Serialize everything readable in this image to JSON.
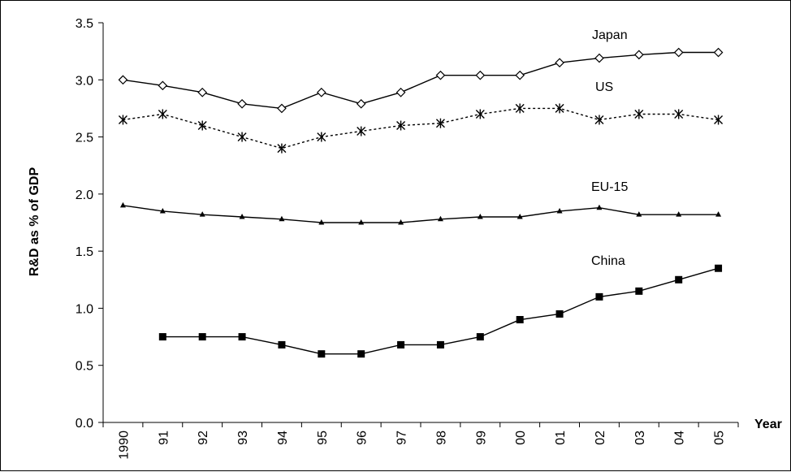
{
  "chart_data": {
    "type": "line",
    "title": "",
    "xlabel": "Year",
    "ylabel": "R&D as % of GDP",
    "categories": [
      "1990",
      "91",
      "92",
      "93",
      "94",
      "95",
      "96",
      "97",
      "98",
      "99",
      "00",
      "01",
      "02",
      "03",
      "04",
      "05"
    ],
    "ylim": [
      0,
      3.5
    ],
    "yticks": [
      "0.0",
      "0.5",
      "1.0",
      "1.5",
      "2.0",
      "2.5",
      "3.0",
      "3.5"
    ],
    "grid": false,
    "legend": "none",
    "series": [
      {
        "name": "Japan",
        "marker": "diamond",
        "line_style": "solid",
        "color": "#000000",
        "values": [
          3.0,
          2.95,
          2.89,
          2.79,
          2.75,
          2.89,
          2.79,
          2.89,
          3.04,
          3.04,
          3.04,
          3.15,
          3.19,
          3.22,
          3.24,
          3.24
        ]
      },
      {
        "name": "US",
        "marker": "asterisk",
        "line_style": "dotted",
        "color": "#000000",
        "values": [
          2.65,
          2.7,
          2.6,
          2.5,
          2.4,
          2.5,
          2.55,
          2.6,
          2.62,
          2.7,
          2.75,
          2.75,
          2.65,
          2.7,
          2.7,
          2.65
        ]
      },
      {
        "name": "EU-15",
        "marker": "triangle",
        "line_style": "solid",
        "color": "#000000",
        "values": [
          1.9,
          1.85,
          1.82,
          1.8,
          1.78,
          1.75,
          1.75,
          1.75,
          1.78,
          1.8,
          1.8,
          1.85,
          1.88,
          1.82,
          1.82,
          1.82
        ]
      },
      {
        "name": "China",
        "marker": "square",
        "line_style": "solid",
        "color": "#000000",
        "values": [
          null,
          0.75,
          0.75,
          0.75,
          0.68,
          0.6,
          0.6,
          0.68,
          0.68,
          0.75,
          0.9,
          0.95,
          1.1,
          1.15,
          1.25,
          1.35
        ]
      }
    ]
  }
}
